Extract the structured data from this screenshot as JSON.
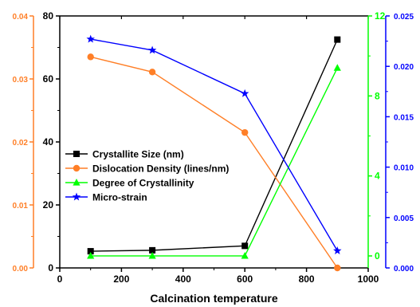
{
  "chart_data": {
    "type": "line",
    "title": "",
    "xlabel": "Calcination temperature",
    "x": [
      100,
      300,
      600,
      900
    ],
    "xlim": [
      0,
      1000
    ],
    "xticks": [
      0,
      200,
      400,
      600,
      800,
      1000
    ],
    "legend_position": "center-left",
    "grid": false,
    "series": [
      {
        "name": "Crystallite Size (nm)",
        "axis": "left-black",
        "color": "#000000",
        "marker": "square",
        "values": [
          5.3,
          5.6,
          7.0,
          72.5
        ]
      },
      {
        "name": "Dislocation Density (lines/nm)",
        "axis": "left-orange",
        "color": "#ff7f27",
        "marker": "circle",
        "values": [
          0.0335,
          0.0311,
          0.0215,
          0.0
        ]
      },
      {
        "name": "Degree of Crystallinity",
        "axis": "right-green",
        "color": "#00ff00",
        "marker": "triangle",
        "values": [
          0.0,
          0.0,
          0.0,
          9.4
        ]
      },
      {
        "name": "Micro-strain",
        "axis": "right-blue",
        "color": "#0000ff",
        "marker": "star",
        "values": [
          0.0227,
          0.0216,
          0.0173,
          0.0017
        ]
      }
    ],
    "axes": {
      "left-black": {
        "color": "#000000",
        "ylim": [
          0,
          80
        ],
        "ticks": [
          "0",
          "20",
          "40",
          "60",
          "80"
        ]
      },
      "left-orange": {
        "color": "#ff7f27",
        "ylim": [
          0,
          0.04
        ],
        "ticks": [
          "0.00",
          "0.01",
          "0.02",
          "0.03",
          "0.04"
        ]
      },
      "right-green": {
        "color": "#00ff00",
        "ylim": [
          -0.6,
          12
        ],
        "ticks": [
          "0",
          "4",
          "8",
          "12"
        ]
      },
      "right-blue": {
        "color": "#0000ff",
        "ylim": [
          0,
          0.025
        ],
        "ticks": [
          "0.000",
          "0.005",
          "0.010",
          "0.015",
          "0.020",
          "0.025"
        ]
      }
    }
  }
}
